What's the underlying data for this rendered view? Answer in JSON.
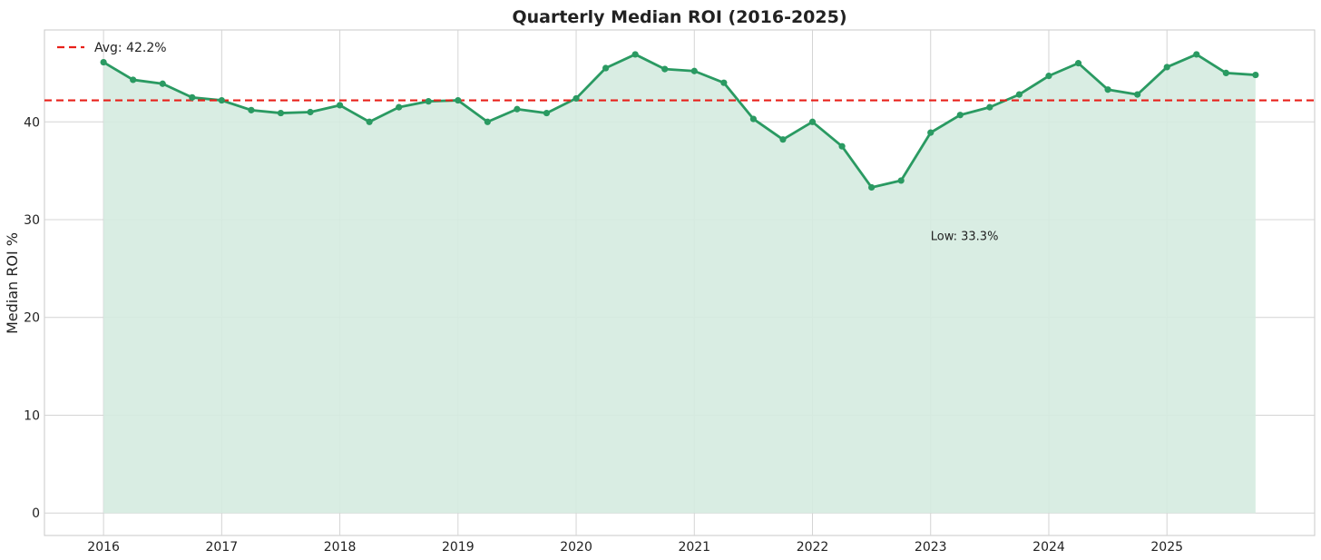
{
  "chart_data": {
    "type": "area",
    "title": "Quarterly Median ROI (2016-2025)",
    "ylabel": "Median ROI %",
    "xlabel": "",
    "xlim": [
      2015.5,
      2026.25
    ],
    "ylim": [
      -2.3,
      49.4
    ],
    "x_ticks": [
      2016,
      2017,
      2018,
      2019,
      2020,
      2021,
      2022,
      2023,
      2024,
      2025
    ],
    "y_ticks": [
      0,
      10,
      20,
      30,
      40
    ],
    "grid": true,
    "legend_position": "top-left",
    "series": [
      {
        "type": "line-with-markers-and-fill",
        "color": "#2a9a62",
        "fill_color": "#d5ebe0",
        "x": [
          2016,
          2016.25,
          2016.5,
          2016.75,
          2017,
          2017.25,
          2017.5,
          2017.75,
          2018,
          2018.25,
          2018.5,
          2018.75,
          2019,
          2019.25,
          2019.5,
          2019.75,
          2020,
          2020.25,
          2020.5,
          2020.75,
          2021,
          2021.25,
          2021.5,
          2021.75,
          2022,
          2022.25,
          2022.5,
          2022.75,
          2023,
          2023.25,
          2023.5,
          2023.75,
          2024,
          2024.25,
          2024.5,
          2024.75,
          2025,
          2025.25,
          2025.5,
          2025.75
        ],
        "values": [
          46.1,
          44.3,
          43.9,
          42.5,
          42.2,
          41.2,
          40.9,
          41.0,
          41.7,
          40.0,
          41.5,
          42.1,
          42.2,
          40.0,
          41.3,
          40.9,
          42.4,
          45.5,
          46.9,
          45.4,
          45.2,
          44.0,
          40.3,
          38.2,
          40.0,
          37.5,
          33.3,
          34.0,
          38.9,
          40.7,
          41.5,
          42.8,
          44.7,
          46.0,
          43.3,
          42.8,
          45.6,
          46.9,
          45.0,
          44.8
        ]
      }
    ],
    "reference_lines": [
      {
        "label": "Avg: 42.2%",
        "value": 42.2,
        "color": "#e8201a",
        "style": "dashed"
      }
    ],
    "annotations": [
      {
        "text": "Low: 33.3%",
        "x": 2023,
        "y": 28.3
      }
    ]
  }
}
